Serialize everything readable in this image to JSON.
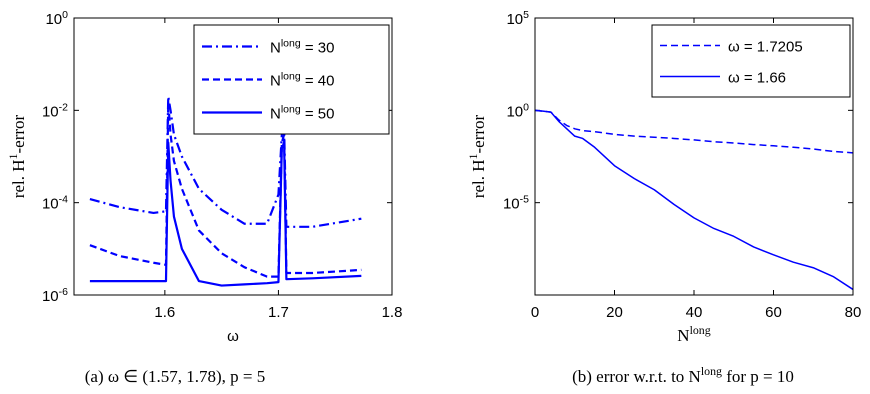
{
  "chart_data": [
    {
      "type": "line",
      "x_label": "ω",
      "y_label": [
        "rel. H",
        "1",
        "-error"
      ],
      "caption": "(a) ω ∈ (1.57, 1.78), p = 5",
      "log_y": true,
      "legend": "northeast",
      "xlim": [
        1.52,
        1.8
      ],
      "xticks": [
        1.6,
        1.7,
        1.8
      ],
      "ylim": [
        1e-06,
        1
      ],
      "yticks": [
        {
          "value": 1e-06,
          "label": [
            "10",
            "-6"
          ]
        },
        {
          "value": 0.0001,
          "label": [
            "10",
            "-4"
          ]
        },
        {
          "value": 0.01,
          "label": [
            "10",
            "-2"
          ]
        },
        {
          "value": 1,
          "label": [
            "10",
            "0"
          ]
        }
      ],
      "x": [
        1.534,
        1.56,
        1.59,
        1.601,
        1.603,
        1.605,
        1.608,
        1.615,
        1.63,
        1.65,
        1.67,
        1.69,
        1.7,
        1.703,
        1.705,
        1.707,
        1.73,
        1.773
      ],
      "series": [
        {
          "name": [
            "N",
            "long",
            " = 30"
          ],
          "color": "#0000ff",
          "style": "dashdot",
          "values": [
            0.00012,
            8e-05,
            6e-05,
            6.5e-05,
            0.02,
            0.01,
            0.003,
            0.001,
            0.0002,
            7e-05,
            3.5e-05,
            3.5e-05,
            0.00015,
            0.003,
            0.004,
            3e-05,
            3e-05,
            4.5e-05
          ]
        },
        {
          "name": [
            "N",
            "long",
            " = 40"
          ],
          "color": "#0000ff",
          "style": "dashed",
          "values": [
            1.2e-05,
            7e-06,
            5e-06,
            4.5e-06,
            0.015,
            0.003,
            0.0008,
            0.0002,
            2.5e-05,
            8e-06,
            4e-06,
            2.5e-06,
            2.5e-06,
            0.002,
            0.003,
            3e-06,
            3e-06,
            3.5e-06
          ]
        },
        {
          "name": [
            "N",
            "long",
            " = 50"
          ],
          "color": "#0000ff",
          "style": "solid",
          "values": [
            2e-06,
            2e-06,
            2e-06,
            2e-06,
            0.002,
            0.0003,
            5e-05,
            1e-05,
            2e-06,
            1.6e-06,
            1.7e-06,
            1.8e-06,
            1.9e-06,
            0.0015,
            0.002,
            2.2e-06,
            2.3e-06,
            2.6e-06
          ]
        }
      ]
    },
    {
      "type": "line",
      "x_label": [
        "N",
        "long"
      ],
      "y_label": [
        "rel. H",
        "1",
        "-error"
      ],
      "caption": [
        "(b) error w.r.t. to N",
        "long",
        " for p = 10"
      ],
      "log_y": true,
      "legend": "northeast",
      "xlim": [
        0,
        80
      ],
      "xticks": [
        0,
        20,
        40,
        60,
        80
      ],
      "ylim": [
        1e-10,
        100000
      ],
      "yticks": [
        {
          "value": 1e-05,
          "label": [
            "10",
            "-5"
          ]
        },
        {
          "value": 1,
          "label": [
            "10",
            "0"
          ]
        },
        {
          "value": 100000,
          "label": [
            "10",
            "5"
          ]
        }
      ],
      "x": [
        0,
        2,
        4,
        6,
        8,
        10,
        12,
        15,
        20,
        25,
        30,
        35,
        40,
        45,
        50,
        55,
        60,
        65,
        70,
        75,
        80
      ],
      "series": [
        {
          "name": "ω = 1.7205",
          "color": "#0000ff",
          "style": "dashed",
          "values": [
            1,
            0.9,
            0.8,
            0.3,
            0.15,
            0.1,
            0.08,
            0.07,
            0.05,
            0.04,
            0.035,
            0.03,
            0.025,
            0.02,
            0.017,
            0.014,
            0.012,
            0.01,
            0.008,
            0.006,
            0.005
          ]
        },
        {
          "name": "ω = 1.66",
          "color": "#0000ff",
          "style": "solid",
          "values": [
            1,
            0.9,
            0.8,
            0.25,
            0.1,
            0.04,
            0.03,
            0.01,
            0.001,
            0.0002,
            5e-05,
            8e-06,
            1.5e-06,
            4e-07,
            1.5e-07,
            4e-08,
            1.5e-08,
            6e-09,
            3e-09,
            1e-09,
            2e-10
          ]
        }
      ]
    }
  ]
}
